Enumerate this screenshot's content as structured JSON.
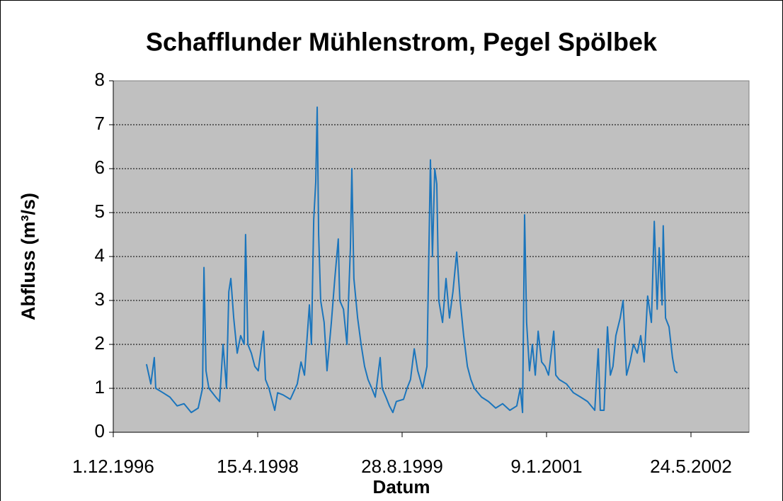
{
  "chart_data": {
    "type": "line",
    "title": "Schafflunder Mühlenstrom, Pegel Spölbek",
    "xlabel": "Datum",
    "ylabel": "Abfluss (m³/s)",
    "color": "#1b75bc",
    "grid": true,
    "xlim": [
      "1996-12-01",
      "2002-12-11"
    ],
    "xticks": [
      {
        "value": "1996-12-01",
        "label": "1.12.1996"
      },
      {
        "value": "1998-04-15",
        "label": "15.4.1998"
      },
      {
        "value": "1999-08-28",
        "label": "28.8.1999"
      },
      {
        "value": "2001-01-09",
        "label": "9.1.2001"
      },
      {
        "value": "2002-05-24",
        "label": "24.5.2002"
      }
    ],
    "ylim": [
      0,
      8
    ],
    "yticks": [
      0,
      1,
      2,
      3,
      4,
      5,
      6,
      7,
      8
    ],
    "x": [
      "1997-03-26",
      "1997-04-10",
      "1997-04-22",
      "1997-04-27",
      "1997-05-22",
      "1997-06-15",
      "1997-07-10",
      "1997-08-03",
      "1997-08-28",
      "1997-09-21",
      "1997-10-06",
      "1997-10-11",
      "1997-10-18",
      "1997-10-28",
      "1997-11-21",
      "1997-12-04",
      "1997-12-16",
      "1997-12-28",
      "1998-01-05",
      "1998-01-12",
      "1998-01-22",
      "1998-02-03",
      "1998-02-15",
      "1998-02-27",
      "1998-03-04",
      "1998-03-12",
      "1998-03-24",
      "1998-04-05",
      "1998-04-17",
      "1998-05-05",
      "1998-05-12",
      "1998-05-24",
      "1998-06-13",
      "1998-06-23",
      "1998-07-12",
      "1998-08-06",
      "1998-08-30",
      "1998-09-12",
      "1998-09-24",
      "1998-10-11",
      "1998-10-18",
      "1998-10-26",
      "1998-11-02",
      "1998-11-07",
      "1998-11-12",
      "1998-11-19",
      "1998-12-01",
      "1998-12-11",
      "1998-12-26",
      "1999-01-07",
      "1999-01-19",
      "1999-01-24",
      "1999-02-06",
      "1999-02-18",
      "1999-03-02",
      "1999-03-07",
      "1999-03-14",
      "1999-03-27",
      "1999-04-08",
      "1999-04-20",
      "1999-05-02",
      "1999-05-15",
      "1999-05-27",
      "1999-06-13",
      "1999-06-20",
      "1999-07-03",
      "1999-07-15",
      "1999-07-27",
      "1999-08-08",
      "1999-09-02",
      "1999-09-14",
      "1999-09-26",
      "1999-10-09",
      "1999-10-21",
      "1999-11-07",
      "1999-11-22",
      "1999-12-04",
      "1999-12-11",
      "1999-12-19",
      "1999-12-26",
      "2000-01-02",
      "2000-01-15",
      "2000-01-27",
      "2000-02-08",
      "2000-02-20",
      "2000-03-04",
      "2000-03-16",
      "2000-03-28",
      "2000-04-10",
      "2000-04-22",
      "2000-05-04",
      "2000-05-29",
      "2000-06-22",
      "2000-07-17",
      "2000-08-10",
      "2000-09-04",
      "2000-09-28",
      "2000-10-10",
      "2000-10-18",
      "2000-10-25",
      "2000-11-01",
      "2000-11-11",
      "2000-11-21",
      "2000-12-01",
      "2000-12-11",
      "2000-12-23",
      "2001-01-04",
      "2001-01-16",
      "2001-02-03",
      "2001-02-10",
      "2001-02-22",
      "2001-03-19",
      "2001-04-12",
      "2001-05-07",
      "2001-05-31",
      "2001-06-25",
      "2001-07-07",
      "2001-07-14",
      "2001-07-27",
      "2001-08-08",
      "2001-08-18",
      "2001-08-27",
      "2001-09-06",
      "2001-09-21",
      "2001-10-01",
      "2001-10-13",
      "2001-10-25",
      "2001-11-06",
      "2001-11-19",
      "2001-12-01",
      "2001-12-13",
      "2001-12-25",
      "2002-01-07",
      "2002-01-17",
      "2002-01-27",
      "2002-02-03",
      "2002-02-13",
      "2002-02-17",
      "2002-02-25",
      "2002-03-09",
      "2002-03-21",
      "2002-03-29",
      "2002-04-07"
    ],
    "values": [
      1.55,
      1.1,
      1.7,
      1.0,
      0.9,
      0.8,
      0.6,
      0.65,
      0.45,
      0.55,
      1.0,
      3.75,
      1.4,
      1.0,
      0.8,
      0.7,
      2.0,
      1.0,
      3.2,
      3.5,
      2.6,
      1.8,
      2.2,
      2.0,
      4.5,
      2.0,
      1.8,
      1.5,
      1.4,
      2.3,
      1.2,
      1.0,
      0.5,
      0.9,
      0.85,
      0.75,
      1.1,
      1.6,
      1.3,
      2.9,
      2.0,
      4.85,
      5.7,
      7.4,
      4.5,
      3.0,
      2.5,
      1.4,
      2.5,
      3.5,
      4.4,
      3.0,
      2.8,
      2.0,
      4.2,
      6.0,
      3.5,
      2.6,
      2.0,
      1.5,
      1.2,
      1.0,
      0.8,
      1.7,
      1.0,
      0.8,
      0.6,
      0.45,
      0.7,
      0.75,
      1.0,
      1.2,
      1.9,
      1.4,
      1.0,
      1.5,
      6.2,
      4.0,
      6.0,
      5.65,
      3.0,
      2.5,
      3.5,
      2.6,
      3.2,
      4.1,
      3.0,
      2.2,
      1.5,
      1.2,
      1.0,
      0.8,
      0.7,
      0.55,
      0.65,
      0.5,
      0.6,
      1.0,
      0.45,
      4.95,
      2.5,
      1.4,
      2.0,
      1.3,
      2.3,
      1.6,
      1.5,
      1.3,
      2.3,
      1.3,
      1.2,
      1.1,
      0.9,
      0.8,
      0.7,
      0.5,
      1.9,
      0.5,
      0.5,
      2.4,
      1.3,
      1.5,
      2.2,
      2.6,
      3.0,
      1.3,
      1.6,
      2.0,
      1.8,
      2.2,
      1.6,
      3.1,
      2.5,
      4.8,
      2.8,
      4.2,
      2.9,
      4.7,
      2.6,
      2.4,
      1.7,
      1.4,
      1.35
    ]
  }
}
